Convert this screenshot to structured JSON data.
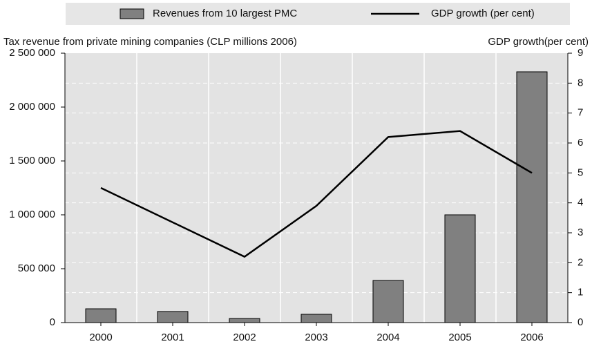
{
  "chart_data": {
    "type": "bar_line",
    "categories": [
      "2000",
      "2001",
      "2002",
      "2003",
      "2004",
      "2005",
      "2006"
    ],
    "series": [
      {
        "name": "Revenues from 10 largest PMC",
        "color": "#808080",
        "type": "bar",
        "axis": "y",
        "values": [
          128000,
          103000,
          38000,
          77000,
          391000,
          1000000,
          2327000
        ]
      },
      {
        "name": "GDP growth (per cent)",
        "color": "#000000",
        "type": "line",
        "axis": "y2",
        "values": [
          4.5,
          3.35,
          2.2,
          3.9,
          6.2,
          6.4,
          5.0
        ]
      }
    ],
    "y_label": "Tax revenue from private mining companies (CLP millions 2006)",
    "y2_label": "GDP growth(per cent)",
    "ylim": [
      0,
      2500000
    ],
    "yticks": [
      0,
      {
        "value": 500000,
        "label": "500 000"
      },
      {
        "value": 1000000,
        "label": "1 000 000"
      },
      {
        "value": 1500000,
        "label": "1 500 000"
      },
      {
        "value": 2000000,
        "label": "2 000 000"
      },
      {
        "value": 2500000,
        "label": "2 500 000"
      }
    ],
    "y2lim": [
      0,
      9
    ],
    "y2ticks": [
      0,
      1,
      2,
      3,
      4,
      5,
      6,
      7,
      8,
      9
    ],
    "grid": true,
    "legend": "top"
  }
}
